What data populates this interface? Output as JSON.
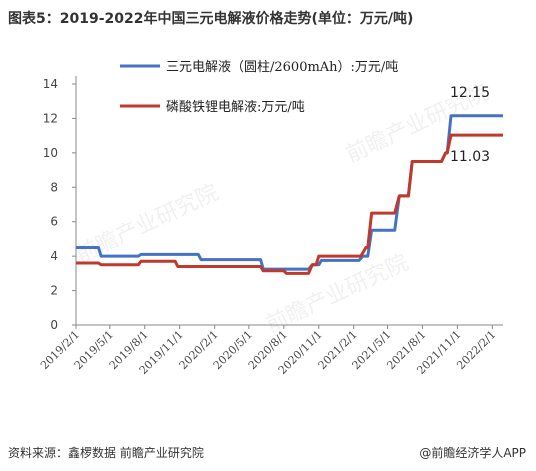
{
  "title": "图表5：2019-2022年中国三元电解液价格走势(单位：万元/吨)",
  "source": "资料来源：鑫椤数据 前瞻产业研究院",
  "brand": "@前瞻经济学人APP",
  "watermark": "前瞻产业研究院",
  "chart_data": {
    "type": "line",
    "title": "图表5：2019-2022年中国三元电解液价格走势(单位：万元/吨)",
    "xlabel": "",
    "ylabel": "",
    "ylim": [
      0,
      14
    ],
    "yticks": [
      "0",
      "2",
      "4",
      "6",
      "8",
      "10",
      "12",
      "14"
    ],
    "xticks": [
      "2019/2/1",
      "2019/5/1",
      "2019/8/1",
      "2019/11/1",
      "2020/2/1",
      "2020/5/1",
      "2020/8/1",
      "2020/11/1",
      "2021/2/1",
      "2021/5/1",
      "2021/8/1",
      "2021/11/1",
      "2022/2/1"
    ],
    "grid": false,
    "legend_position": "top",
    "series": [
      {
        "name": "三元电解液（圆柱/2600mAh）:万元/吨",
        "color": "#4472c4",
        "points": [
          [
            "2019/2/1",
            4.5
          ],
          [
            "2019/4/1",
            4.5
          ],
          [
            "2019/4/8",
            4.0
          ],
          [
            "2019/7/15",
            4.0
          ],
          [
            "2019/7/22",
            4.1
          ],
          [
            "2019/12/20",
            4.1
          ],
          [
            "2019/12/27",
            3.8
          ],
          [
            "2020/6/1",
            3.8
          ],
          [
            "2020/6/8",
            3.25
          ],
          [
            "2020/10/5",
            3.25
          ],
          [
            "2020/10/15",
            3.5
          ],
          [
            "2020/11/1",
            3.5
          ],
          [
            "2020/11/8",
            3.75
          ],
          [
            "2021/2/15",
            3.75
          ],
          [
            "2021/2/25",
            4.0
          ],
          [
            "2021/3/10",
            4.0
          ],
          [
            "2021/3/20",
            5.5
          ],
          [
            "2021/5/20",
            5.5
          ],
          [
            "2021/6/1",
            7.5
          ],
          [
            "2021/6/25",
            7.5
          ],
          [
            "2021/7/5",
            9.5
          ],
          [
            "2021/9/20",
            9.5
          ],
          [
            "2021/10/1",
            10.0
          ],
          [
            "2021/10/5",
            10.0
          ],
          [
            "2021/10/15",
            12.15
          ],
          [
            "2022/3/1",
            12.15
          ]
        ]
      },
      {
        "name": "磷酸铁锂电解液:万元/吨",
        "color": "#c0392b",
        "points": [
          [
            "2019/2/1",
            3.6
          ],
          [
            "2019/4/1",
            3.6
          ],
          [
            "2019/4/8",
            3.5
          ],
          [
            "2019/7/15",
            3.5
          ],
          [
            "2019/7/22",
            3.7
          ],
          [
            "2019/10/20",
            3.7
          ],
          [
            "2019/10/27",
            3.4
          ],
          [
            "2020/6/1",
            3.4
          ],
          [
            "2020/6/8",
            3.15
          ],
          [
            "2020/8/1",
            3.15
          ],
          [
            "2020/8/8",
            3.0
          ],
          [
            "2020/10/5",
            3.0
          ],
          [
            "2020/10/15",
            3.5
          ],
          [
            "2020/10/25",
            3.5
          ],
          [
            "2020/11/1",
            4.0
          ],
          [
            "2021/2/20",
            4.0
          ],
          [
            "2021/3/5",
            4.5
          ],
          [
            "2021/3/10",
            4.5
          ],
          [
            "2021/3/20",
            6.5
          ],
          [
            "2021/5/20",
            6.5
          ],
          [
            "2021/6/1",
            7.5
          ],
          [
            "2021/6/25",
            7.5
          ],
          [
            "2021/7/5",
            9.5
          ],
          [
            "2021/9/20",
            9.5
          ],
          [
            "2021/10/1",
            10.0
          ],
          [
            "2021/10/5",
            10.0
          ],
          [
            "2021/10/15",
            11.03
          ],
          [
            "2022/3/1",
            11.03
          ]
        ]
      }
    ],
    "end_labels": [
      "12.15",
      "11.03"
    ]
  }
}
